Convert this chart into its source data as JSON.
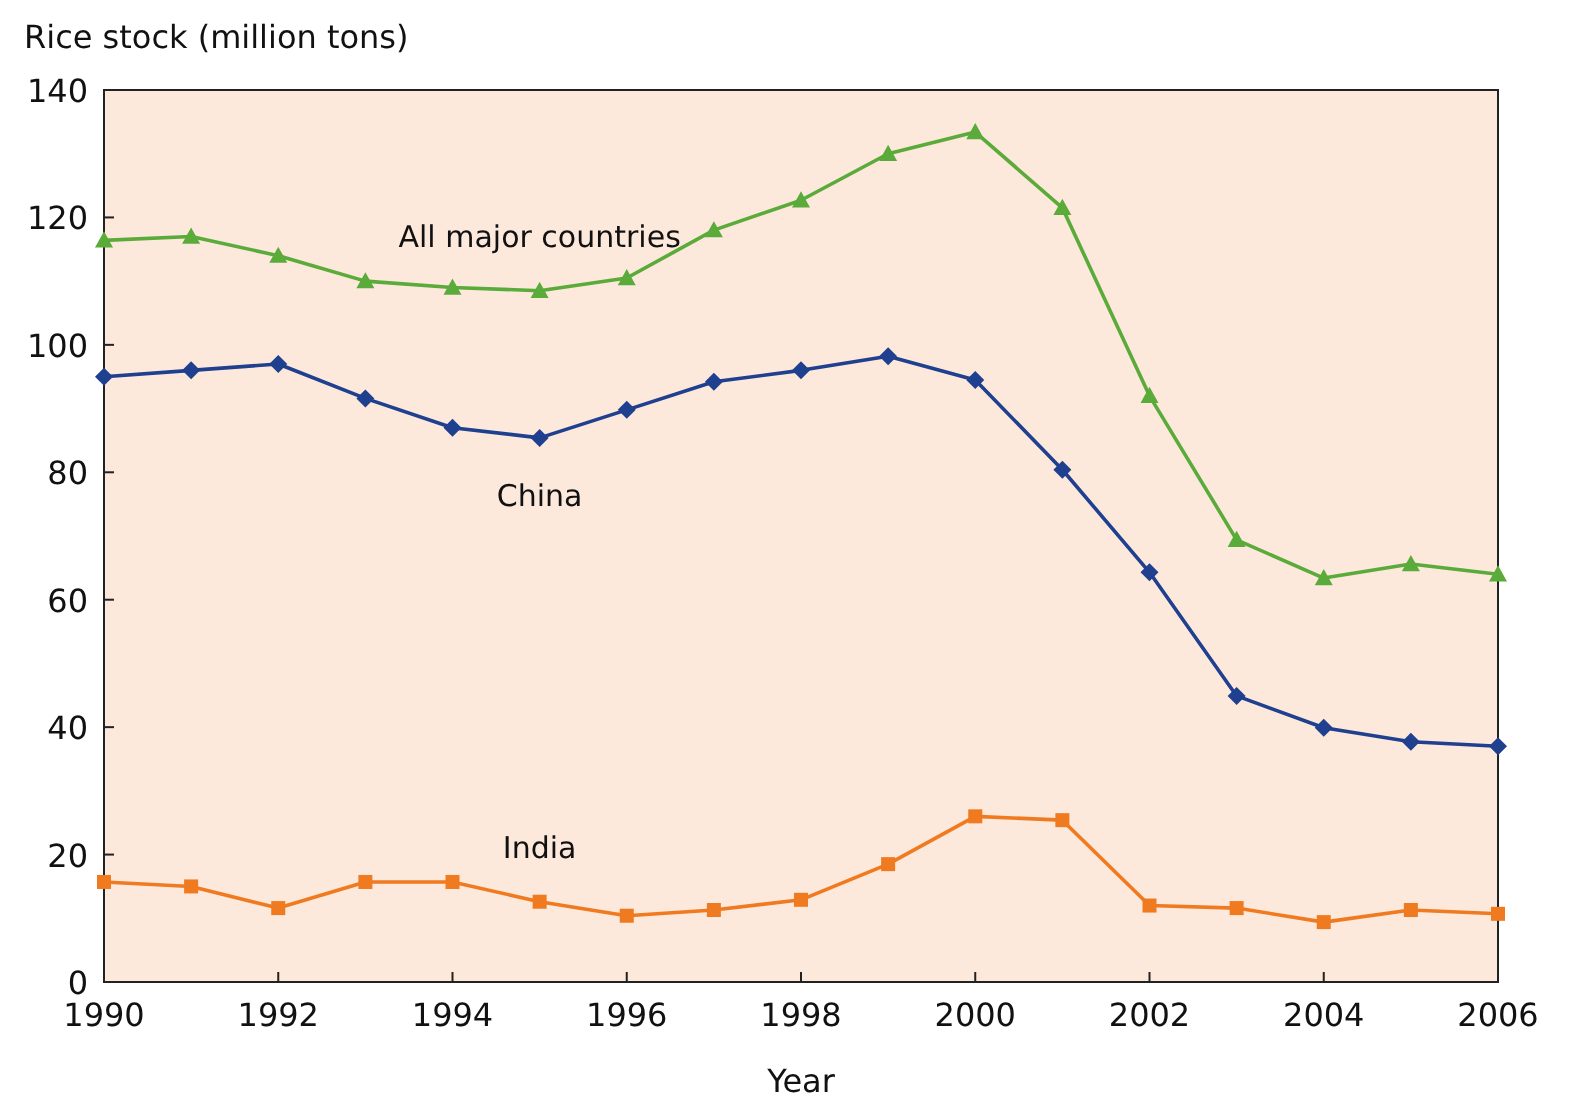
{
  "chart_data": {
    "type": "line",
    "xlabel": "Year",
    "ylabel": "Rice stock (million tons)",
    "x": [
      1990,
      1991,
      1992,
      1993,
      1994,
      1995,
      1996,
      1997,
      1998,
      1999,
      2000,
      2001,
      2002,
      2003,
      2004,
      2005,
      2006
    ],
    "xlim": [
      1990,
      2006
    ],
    "xticks": [
      1990,
      1992,
      1994,
      1996,
      1998,
      2000,
      2002,
      2004,
      2006
    ],
    "ylim": [
      0,
      140
    ],
    "yticks": [
      0,
      20,
      40,
      60,
      80,
      100,
      120,
      140
    ],
    "grid": false,
    "series": [
      {
        "name": "All major countries",
        "color": "#5aab3a",
        "marker": "triangle",
        "values": [
          116.4,
          117,
          114,
          110,
          109,
          108.5,
          110.5,
          118,
          122.7,
          130,
          133.4,
          121.5,
          92,
          69.4,
          63.4,
          65.6,
          64
        ]
      },
      {
        "name": "China",
        "color": "#1f3f8f",
        "marker": "diamond",
        "values": [
          95,
          96,
          97,
          91.6,
          87,
          85.4,
          89.8,
          94.2,
          96,
          98.2,
          94.5,
          80.4,
          64.3,
          44.9,
          39.9,
          37.7,
          37
        ]
      },
      {
        "name": "India",
        "color": "#f07a20",
        "marker": "square",
        "values": [
          15.7,
          15,
          11.6,
          15.7,
          15.7,
          12.6,
          10.4,
          11.3,
          12.9,
          18.5,
          26,
          25.4,
          12,
          11.6,
          9.4,
          11.3,
          10.7
        ]
      }
    ]
  }
}
